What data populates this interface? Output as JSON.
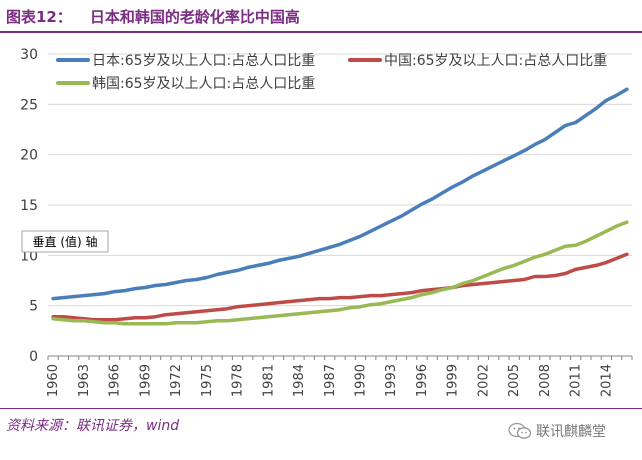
{
  "header": {
    "figure_label": "图表12：",
    "title": "日本和韩国的老龄化率比中国高"
  },
  "footer": {
    "source": "资料来源：联讯证券，wind",
    "watermark": "联讯麒麟堂"
  },
  "colors": {
    "brand": "#7b2c83",
    "japan": "#4a7ebb",
    "china": "#be4b48",
    "korea": "#98b954",
    "grid": "#d9d9d9",
    "axis_text": "#404040"
  },
  "chart_data": {
    "type": "line",
    "title": "",
    "xlabel": "",
    "ylabel": "垂直 (值) 轴",
    "ylim": [
      0,
      30
    ],
    "yticks": [
      0,
      5,
      10,
      15,
      20,
      25,
      30
    ],
    "xtick_labels": [
      "1960",
      "1963",
      "1966",
      "1969",
      "1972",
      "1975",
      "1978",
      "1981",
      "1984",
      "1987",
      "1990",
      "1993",
      "1996",
      "1999",
      "2002",
      "2005",
      "2008",
      "2011",
      "2014"
    ],
    "grid": true,
    "legend_position": "top",
    "x": [
      1960,
      1961,
      1962,
      1963,
      1964,
      1965,
      1966,
      1967,
      1968,
      1969,
      1970,
      1971,
      1972,
      1973,
      1974,
      1975,
      1976,
      1977,
      1978,
      1979,
      1980,
      1981,
      1982,
      1983,
      1984,
      1985,
      1986,
      1987,
      1988,
      1989,
      1990,
      1991,
      1992,
      1993,
      1994,
      1995,
      1996,
      1997,
      1998,
      1999,
      2000,
      2001,
      2002,
      2003,
      2004,
      2005,
      2006,
      2007,
      2008,
      2009,
      2010,
      2011,
      2012,
      2013,
      2014,
      2015,
      2016
    ],
    "series": [
      {
        "name": "日本:65岁及以上人口:占总人口比重",
        "values": [
          5.7,
          5.8,
          5.9,
          6.0,
          6.1,
          6.2,
          6.4,
          6.5,
          6.7,
          6.8,
          7.0,
          7.1,
          7.3,
          7.5,
          7.6,
          7.8,
          8.1,
          8.3,
          8.5,
          8.8,
          9.0,
          9.2,
          9.5,
          9.7,
          9.9,
          10.2,
          10.5,
          10.8,
          11.1,
          11.5,
          11.9,
          12.4,
          12.9,
          13.4,
          13.9,
          14.5,
          15.1,
          15.6,
          16.2,
          16.8,
          17.3,
          17.9,
          18.4,
          18.9,
          19.4,
          19.9,
          20.4,
          21.0,
          21.5,
          22.2,
          22.9,
          23.2,
          23.9,
          24.6,
          25.4,
          25.9,
          26.5
        ]
      },
      {
        "name": "中国:65岁及以上人口:占总人口比重",
        "values": [
          3.9,
          3.9,
          3.8,
          3.7,
          3.6,
          3.6,
          3.6,
          3.7,
          3.8,
          3.8,
          3.9,
          4.1,
          4.2,
          4.3,
          4.4,
          4.5,
          4.6,
          4.7,
          4.9,
          5.0,
          5.1,
          5.2,
          5.3,
          5.4,
          5.5,
          5.6,
          5.7,
          5.7,
          5.8,
          5.8,
          5.9,
          6.0,
          6.0,
          6.1,
          6.2,
          6.3,
          6.5,
          6.6,
          6.7,
          6.8,
          7.0,
          7.1,
          7.2,
          7.3,
          7.4,
          7.5,
          7.6,
          7.9,
          7.9,
          8.0,
          8.2,
          8.6,
          8.8,
          9.0,
          9.3,
          9.7,
          10.1
        ]
      },
      {
        "name": "韩国:65岁及以上人口:占总人口比重",
        "values": [
          3.7,
          3.6,
          3.5,
          3.5,
          3.4,
          3.3,
          3.3,
          3.2,
          3.2,
          3.2,
          3.2,
          3.2,
          3.3,
          3.3,
          3.3,
          3.4,
          3.5,
          3.5,
          3.6,
          3.7,
          3.8,
          3.9,
          4.0,
          4.1,
          4.2,
          4.3,
          4.4,
          4.5,
          4.6,
          4.8,
          4.9,
          5.1,
          5.2,
          5.4,
          5.6,
          5.8,
          6.1,
          6.3,
          6.6,
          6.8,
          7.2,
          7.5,
          7.9,
          8.3,
          8.7,
          9.0,
          9.4,
          9.8,
          10.1,
          10.5,
          10.9,
          11.0,
          11.4,
          11.9,
          12.4,
          12.9,
          13.3
        ]
      }
    ]
  }
}
